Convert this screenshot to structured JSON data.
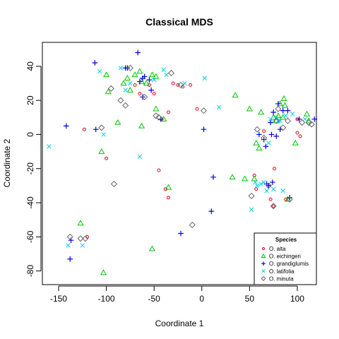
{
  "chart_data": {
    "type": "scatter",
    "title": "Classical MDS",
    "xlabel": "Coordinate 1",
    "ylabel": "Coordinate 2",
    "xlim": [
      -167,
      120
    ],
    "ylim": [
      -88,
      54
    ],
    "x_ticks": [
      -150,
      -100,
      -50,
      0,
      50,
      100
    ],
    "y_ticks": [
      -80,
      -60,
      -40,
      -20,
      0,
      20,
      40
    ],
    "grid": false,
    "legend": {
      "title": "Species",
      "placement": "bottom-right",
      "entries": [
        "O. alta",
        "O. eichingeri",
        "O. grandiglumis",
        "O. latifolia",
        "O. minuta"
      ]
    },
    "series": [
      {
        "name": "O. alta",
        "marker": "circle",
        "color": "#e8001c",
        "points": [
          [
            -123,
            3
          ],
          [
            -100,
            -14
          ],
          [
            -70,
            29
          ],
          [
            -65,
            24
          ],
          [
            -55,
            29
          ],
          [
            -50,
            24
          ],
          [
            -45,
            -21
          ],
          [
            -42,
            9
          ],
          [
            -38,
            -32
          ],
          [
            -35,
            13
          ],
          [
            -35,
            -37
          ],
          [
            -30,
            30
          ],
          [
            -25,
            29
          ],
          [
            -20,
            28
          ],
          [
            -12,
            29
          ],
          [
            -5,
            15
          ],
          [
            55,
            -24
          ],
          [
            57,
            -32
          ],
          [
            72,
            -38
          ],
          [
            75,
            -42
          ],
          [
            76,
            -20
          ],
          [
            100,
            1
          ],
          [
            100,
            9
          ],
          [
            103,
            -1
          ],
          [
            -120,
            -60
          ],
          [
            65,
            2
          ],
          [
            88,
            -38
          ]
        ]
      },
      {
        "name": "O. eichingeri",
        "marker": "triangle",
        "color": "#00c800",
        "points": [
          [
            -127,
            -52
          ],
          [
            -103,
            -81
          ],
          [
            -105,
            -10
          ],
          [
            -100,
            35
          ],
          [
            -98,
            25
          ],
          [
            -88,
            7
          ],
          [
            -82,
            30
          ],
          [
            -78,
            33
          ],
          [
            -75,
            26
          ],
          [
            -70,
            35
          ],
          [
            -65,
            37
          ],
          [
            -63,
            31
          ],
          [
            -58,
            30
          ],
          [
            -52,
            35
          ],
          [
            -48,
            34
          ],
          [
            -48,
            15
          ],
          [
            -63,
            5
          ],
          [
            -52,
            -67
          ],
          [
            -35,
            -31
          ],
          [
            -40,
            9
          ],
          [
            35,
            23
          ],
          [
            32,
            -25
          ],
          [
            45,
            -26
          ],
          [
            50,
            15
          ],
          [
            55,
            -26
          ],
          [
            57,
            -5
          ],
          [
            60,
            -8
          ],
          [
            62,
            13
          ],
          [
            75,
            10
          ],
          [
            78,
            8
          ],
          [
            80,
            11
          ],
          [
            82,
            18
          ],
          [
            85,
            10
          ],
          [
            86,
            21
          ],
          [
            87,
            17
          ],
          [
            98,
            -5
          ],
          [
            110,
            12
          ],
          [
            112,
            8
          ],
          [
            90,
            -38
          ]
        ]
      },
      {
        "name": "O. grandiglumis",
        "marker": "plus",
        "color": "#0000e0",
        "points": [
          [
            -142,
            5
          ],
          [
            -137,
            -62
          ],
          [
            -138,
            -73
          ],
          [
            -112,
            42
          ],
          [
            -111,
            3
          ],
          [
            -80,
            39
          ],
          [
            -78,
            39
          ],
          [
            -67,
            48
          ],
          [
            -65,
            31
          ],
          [
            -62,
            33
          ],
          [
            -60,
            34
          ],
          [
            -62,
            22
          ],
          [
            -55,
            32
          ],
          [
            -53,
            26
          ],
          [
            -43,
            9
          ],
          [
            -22,
            -58
          ],
          [
            2,
            3
          ],
          [
            12,
            -25
          ],
          [
            10,
            -45
          ],
          [
            60,
            0
          ],
          [
            65,
            -3
          ],
          [
            67,
            -7
          ],
          [
            68,
            -29
          ],
          [
            70,
            -30
          ],
          [
            72,
            7
          ],
          [
            73,
            0
          ],
          [
            75,
            13
          ],
          [
            78,
            -1
          ],
          [
            80,
            18
          ],
          [
            82,
            3
          ],
          [
            85,
            14
          ],
          [
            90,
            14
          ],
          [
            92,
            -37
          ],
          [
            102,
            9
          ],
          [
            118,
            9
          ],
          [
            74,
            -28
          ]
        ]
      },
      {
        "name": "O. latifolia",
        "marker": "x",
        "color": "#00d0e0",
        "points": [
          [
            -160,
            -7
          ],
          [
            -140,
            -65
          ],
          [
            -125,
            -65
          ],
          [
            -107,
            37
          ],
          [
            -103,
            0
          ],
          [
            -85,
            39
          ],
          [
            -80,
            26
          ],
          [
            -75,
            30
          ],
          [
            -65,
            -13
          ],
          [
            -50,
            32
          ],
          [
            -40,
            38
          ],
          [
            -37,
            35
          ],
          [
            -18,
            30
          ],
          [
            3,
            33
          ],
          [
            18,
            16
          ],
          [
            52,
            -44
          ],
          [
            56,
            -28
          ],
          [
            58,
            -30
          ],
          [
            62,
            -29
          ],
          [
            65,
            -28
          ],
          [
            68,
            -33
          ],
          [
            70,
            -5
          ],
          [
            72,
            9
          ],
          [
            75,
            -32
          ],
          [
            78,
            10
          ],
          [
            80,
            8
          ],
          [
            82,
            8
          ],
          [
            85,
            -33
          ],
          [
            88,
            11
          ],
          [
            95,
            12
          ],
          [
            108,
            9
          ]
        ]
      },
      {
        "name": "O. minuta",
        "marker": "diamond",
        "color": "#666666",
        "points": [
          [
            -138,
            -60
          ],
          [
            -127,
            -61
          ],
          [
            -122,
            -61
          ],
          [
            -105,
            4
          ],
          [
            -95,
            27
          ],
          [
            -92,
            -29
          ],
          [
            -85,
            20
          ],
          [
            -80,
            17
          ],
          [
            -75,
            39
          ],
          [
            -60,
            22
          ],
          [
            -48,
            11
          ],
          [
            -45,
            10
          ],
          [
            -32,
            36
          ],
          [
            -22,
            29
          ],
          [
            -10,
            -53
          ],
          [
            2,
            14
          ],
          [
            52,
            -36
          ],
          [
            58,
            3
          ],
          [
            65,
            -2
          ],
          [
            70,
            -30
          ],
          [
            75,
            -42
          ],
          [
            78,
            8
          ],
          [
            80,
            15
          ],
          [
            85,
            4
          ],
          [
            90,
            8
          ],
          [
            92,
            -38
          ],
          [
            105,
            7
          ],
          [
            112,
            7
          ],
          [
            115,
            6
          ]
        ]
      }
    ]
  }
}
